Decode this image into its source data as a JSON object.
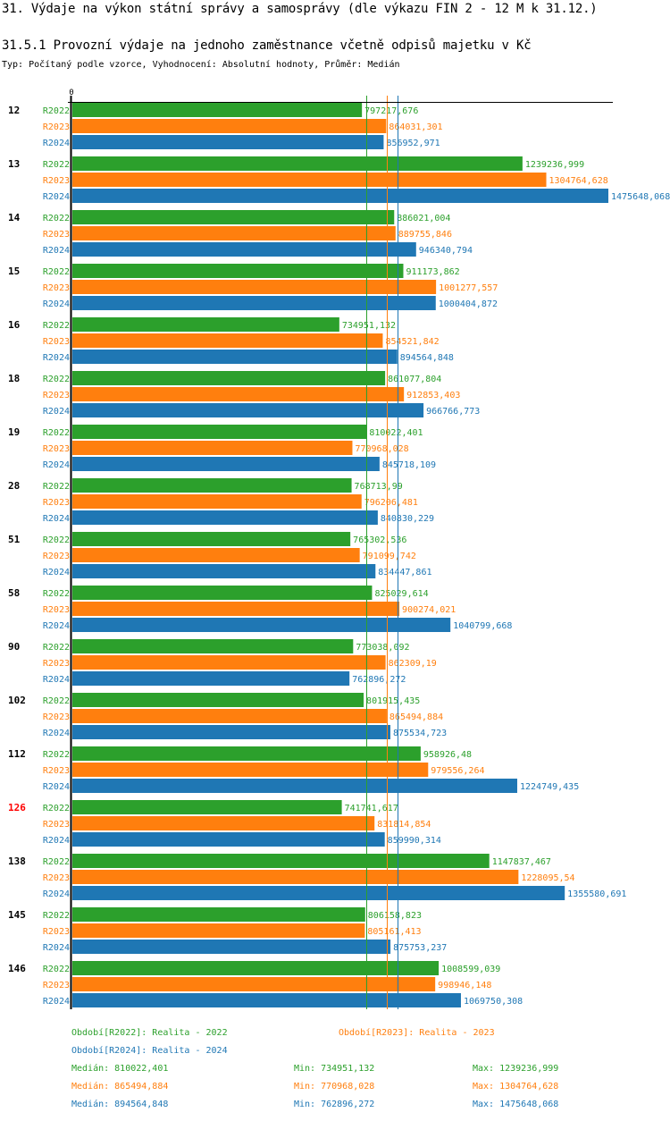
{
  "header": {
    "title": "31. Výdaje na výkon státní správy a samosprávy (dle výkazu FIN 2 - 12 M k 31.12.)",
    "subtitle": "31.5.1 Provozní výdaje na jednoho zaměstnance včetně odpisů majetku v Kč",
    "typ": "Typ: Počítaný podle vzorce, Vyhodnocení: Absolutní hodnoty, Průměr: Medián"
  },
  "colors": {
    "R2022": "#2ca02c",
    "R2023": "#ff7f0e",
    "R2024": "#1f77b4",
    "highlight": "#ff0000",
    "axis": "#000000"
  },
  "chart_data": {
    "type": "bar",
    "orientation": "horizontal",
    "title": "31.5.1 Provozní výdaje na jednoho zaměstnance včetně odpisů majetku v Kč",
    "xlabel": "",
    "ylabel": "",
    "axis_zero_label": "0",
    "xlim": [
      0,
      1475648.068
    ],
    "grid": false,
    "categories": [
      "12",
      "13",
      "14",
      "15",
      "16",
      "18",
      "19",
      "28",
      "51",
      "58",
      "90",
      "102",
      "112",
      "126",
      "138",
      "145",
      "146"
    ],
    "highlighted_category": "126",
    "series": [
      {
        "name": "R2022",
        "values": [
          797217.676,
          1239236.999,
          886021.004,
          911173.862,
          734951.132,
          861077.804,
          810022.401,
          768713.99,
          765302.536,
          825029.614,
          773038.092,
          801915.435,
          958926.48,
          741741.617,
          1147837.467,
          806158.823,
          1008599.039
        ],
        "labels": [
          "797217,676",
          "1239236,999",
          "886021,004",
          "911173,862",
          "734951,132",
          "861077,804",
          "810022,401",
          "768713,99",
          "765302,536",
          "825029,614",
          "773038,092",
          "801915,435",
          "958926,48",
          "741741,617",
          "1147837,467",
          "806158,823",
          "1008599,039"
        ]
      },
      {
        "name": "R2023",
        "values": [
          864031.301,
          1304764.628,
          889755.846,
          1001277.557,
          854521.842,
          912853.403,
          770968.028,
          796206.481,
          791099.742,
          900274.021,
          862309.19,
          865494.884,
          979556.264,
          831814.854,
          1228095.54,
          805161.413,
          998946.148
        ],
        "labels": [
          "864031,301",
          "1304764,628",
          "889755,846",
          "1001277,557",
          "854521,842",
          "912853,403",
          "770968,028",
          "796206,481",
          "791099,742",
          "900274,021",
          "862309,19",
          "865494,884",
          "979556,264",
          "831814,854",
          "1228095,54",
          "805161,413",
          "998946,148"
        ]
      },
      {
        "name": "R2024",
        "values": [
          856952.971,
          1475648.068,
          946340.794,
          1000404.872,
          894564.848,
          966766.773,
          845718.109,
          840830.229,
          834447.861,
          1040799.668,
          762896.272,
          875534.723,
          1224749.435,
          859990.314,
          1355580.691,
          875753.237,
          1069750.308
        ],
        "labels": [
          "856952,971",
          "1475648,068",
          "946340,794",
          "1000404,872",
          "894564,848",
          "966766,773",
          "845718,109",
          "840830,229",
          "834447,861",
          "1040799,668",
          "762896,272",
          "875534,723",
          "1224749,435",
          "859990,314",
          "1355580,691",
          "875753,237",
          "1069750,308"
        ]
      }
    ],
    "medians": {
      "R2022": 810022.401,
      "R2023": 865494.884,
      "R2024": 894564.848
    },
    "legend": [
      {
        "series": "R2022",
        "text": "Období[R2022]: Realita - 2022"
      },
      {
        "series": "R2023",
        "text": "Období[R2023]: Realita - 2023"
      },
      {
        "series": "R2024",
        "text": "Období[R2024]: Realita - 2024"
      }
    ],
    "stats": [
      {
        "series": "R2022",
        "median": "Medián: 810022,401",
        "min": "Min: 734951,132",
        "max": "Max: 1239236,999"
      },
      {
        "series": "R2023",
        "median": "Medián: 865494,884",
        "min": "Min: 770968,028",
        "max": "Max: 1304764,628"
      },
      {
        "series": "R2024",
        "median": "Medián: 894564,848",
        "min": "Min: 762896,272",
        "max": "Max: 1475648,068"
      }
    ]
  }
}
